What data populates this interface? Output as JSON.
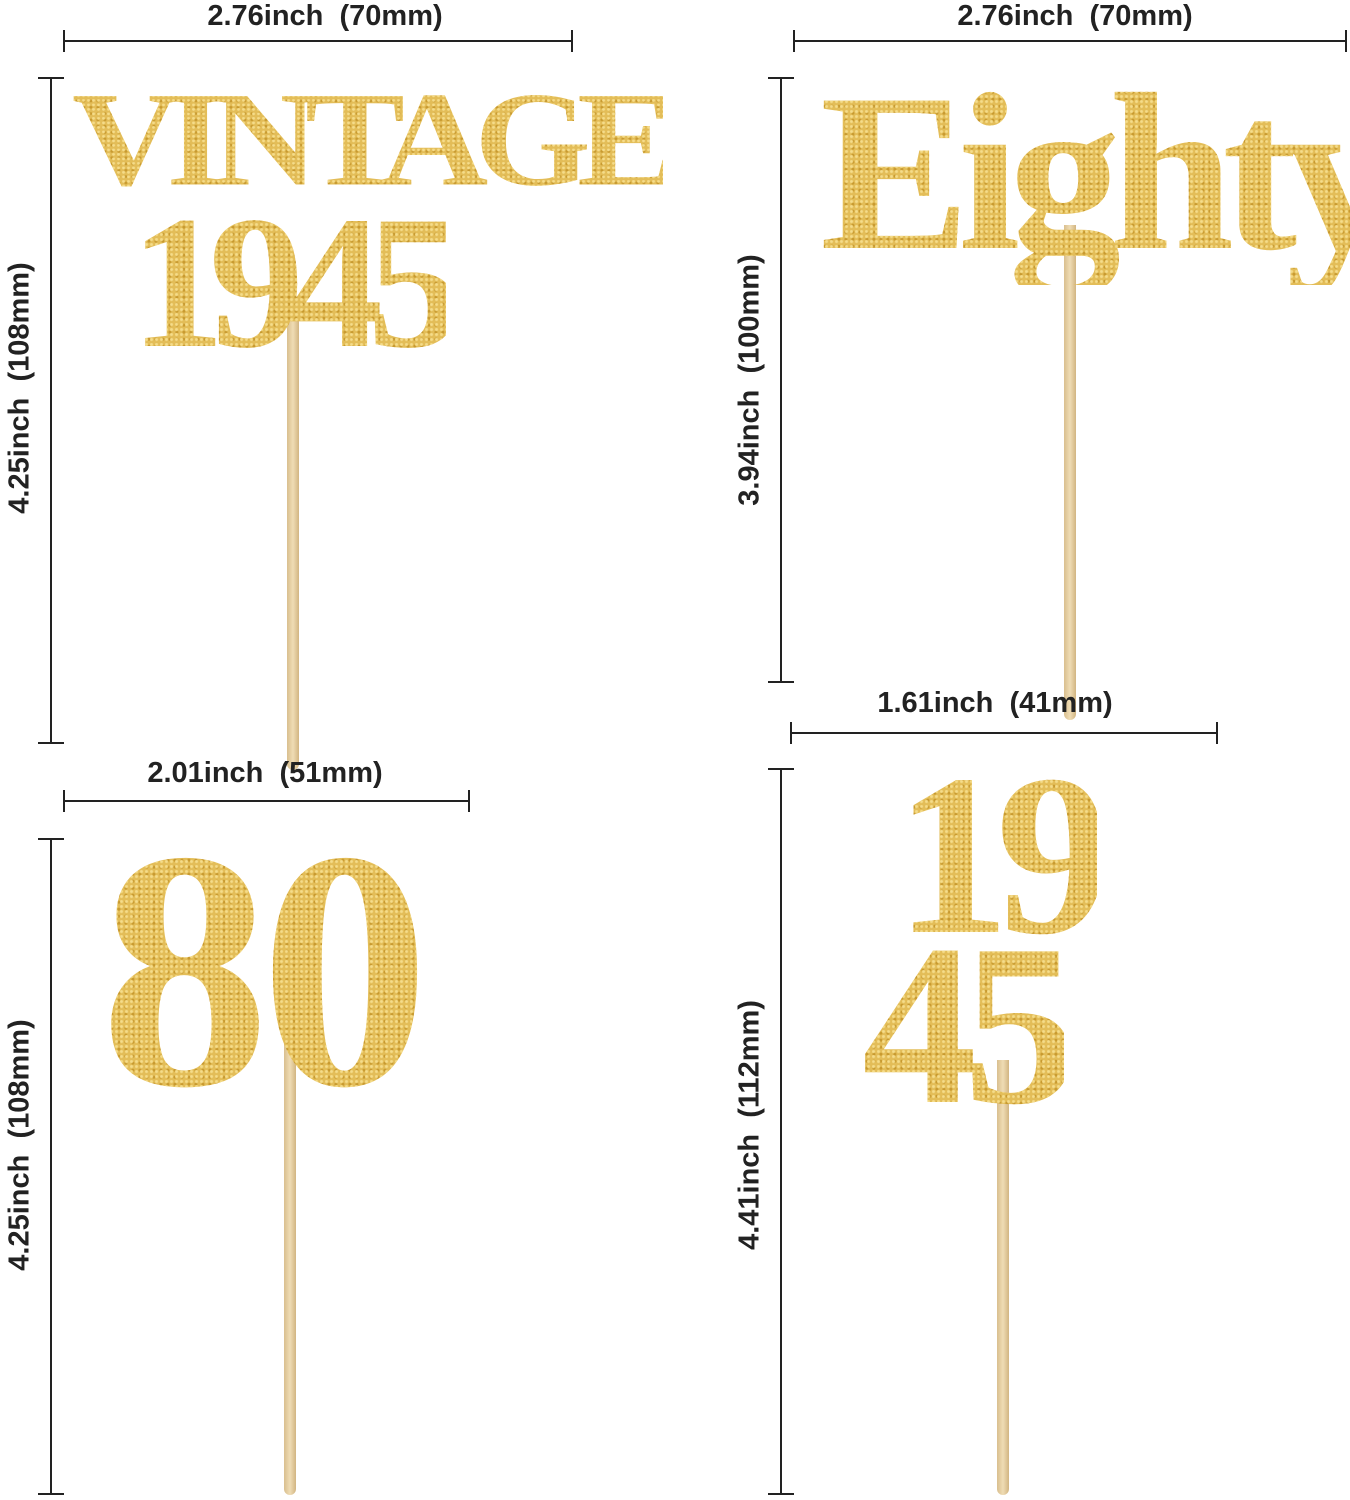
{
  "toppers": [
    {
      "name": "vintage-1945",
      "lines": [
        "VINTAGE",
        "1945"
      ],
      "width_label": "2.76inch  (70mm)",
      "height_label": "4.25inch  (108mm)"
    },
    {
      "name": "eighty",
      "lines": [
        "Eighty"
      ],
      "width_label": "2.76inch  (70mm)",
      "height_label": "3.94inch  (100mm)"
    },
    {
      "name": "80",
      "lines": [
        "80"
      ],
      "width_label": "2.01inch  (51mm)",
      "height_label": "4.25inch  (108mm)"
    },
    {
      "name": "1945",
      "lines": [
        "19",
        "45"
      ],
      "width_label": "1.61inch  (41mm)",
      "height_label": "4.41inch  (112mm)"
    }
  ],
  "colors": {
    "gold": "#e2bc55",
    "stick": "#e6cfa1",
    "dimension": "#222222"
  }
}
